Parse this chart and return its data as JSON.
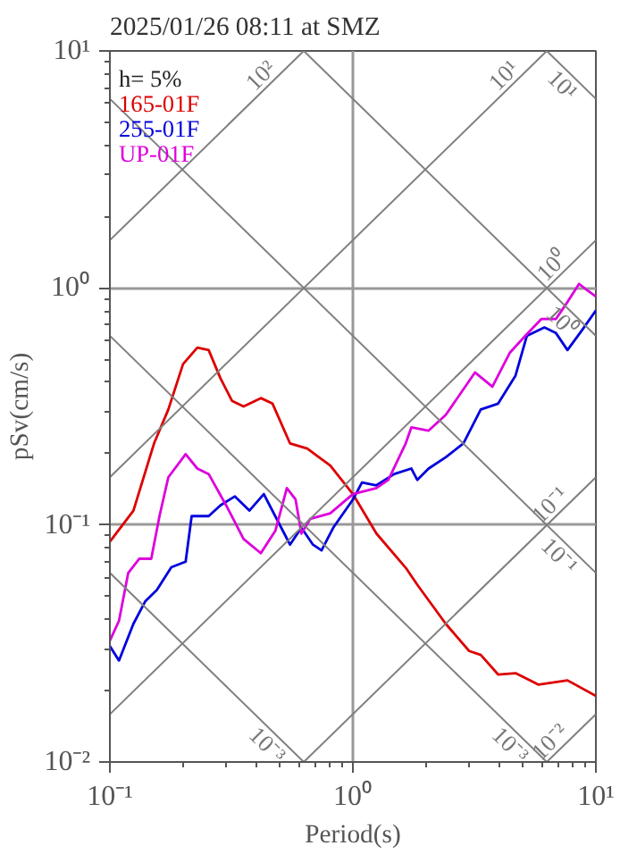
{
  "chart_data": {
    "type": "line",
    "title": "2025/01/26 08:11 at SMZ",
    "xlabel": "Period(s)",
    "ylabel": "pSv(cm/s)",
    "log": "xy",
    "grid": true,
    "legend": "top left",
    "line_style": "solid",
    "marker": "none",
    "xlim": [
      0.1,
      10
    ],
    "ylim": [
      0.01,
      10
    ],
    "xticks": [
      {
        "value": 0.1,
        "label": "10⁻¹"
      },
      {
        "value": 1,
        "label": "10⁰"
      },
      {
        "value": 10,
        "label": "10¹"
      }
    ],
    "yticks": [
      {
        "value": 0.01,
        "label": "10⁻²"
      },
      {
        "value": 0.1,
        "label": "10⁻¹"
      },
      {
        "value": 1,
        "label": "10⁰"
      },
      {
        "value": 10,
        "label": "10¹"
      }
    ],
    "annotations": [
      "h= 5%",
      {
        "text": "10²",
        "x": 0.628,
        "y": 10
      },
      {
        "text": "10¹",
        "x": 6.28,
        "y": 10
      },
      {
        "text": "10⁰",
        "x": 10,
        "y": 1.59
      },
      {
        "text": "10⁻¹",
        "x": 10,
        "y": 0.159
      },
      {
        "text": "10⁻²",
        "x": 10,
        "y": 0.0159
      },
      {
        "text": "10¹",
        "x": 10,
        "y": 6.28
      },
      {
        "text": "10⁰",
        "x": 10,
        "y": 0.628
      },
      {
        "text": "10⁻¹",
        "x": 10,
        "y": 0.0628
      },
      {
        "text": "10⁻³",
        "x": 6.28,
        "y": 0.01
      },
      {
        "text": "10⁻³",
        "x": 0.628,
        "y": 0.01
      }
    ],
    "series": [
      {
        "name": "165-01F",
        "color": "#dd0000",
        "x": [
          0.1,
          0.125,
          0.152,
          0.174,
          0.2,
          0.229,
          0.255,
          0.285,
          0.318,
          0.355,
          0.418,
          0.467,
          0.551,
          0.649,
          0.807,
          1.0,
          1.25,
          1.65,
          1.84,
          2.41,
          3.01,
          3.36,
          3.96,
          4.67,
          5.81,
          7.64,
          10
        ],
        "values": [
          0.085,
          0.115,
          0.221,
          0.307,
          0.477,
          0.56,
          0.547,
          0.416,
          0.334,
          0.316,
          0.343,
          0.325,
          0.221,
          0.21,
          0.178,
          0.135,
          0.092,
          0.066,
          0.056,
          0.0383,
          0.0294,
          0.0283,
          0.0234,
          0.0237,
          0.0212,
          0.0221,
          0.019
        ]
      },
      {
        "name": "255-01F",
        "color": "#0000dd",
        "x": [
          0.1,
          0.109,
          0.125,
          0.14,
          0.156,
          0.179,
          0.205,
          0.217,
          0.255,
          0.285,
          0.327,
          0.375,
          0.43,
          0.493,
          0.551,
          0.614,
          0.685,
          0.743,
          0.83,
          1.0,
          1.09,
          1.25,
          1.48,
          1.74,
          1.84,
          2.05,
          2.41,
          2.85,
          3.36,
          3.96,
          4.67,
          5.2,
          6.14,
          6.85,
          7.64,
          8.77,
          10
        ],
        "values": [
          0.0308,
          0.0268,
          0.0383,
          0.0477,
          0.0532,
          0.0663,
          0.07,
          0.109,
          0.109,
          0.121,
          0.132,
          0.115,
          0.135,
          0.103,
          0.0826,
          0.0973,
          0.0826,
          0.0781,
          0.0973,
          0.128,
          0.151,
          0.147,
          0.164,
          0.173,
          0.155,
          0.173,
          0.193,
          0.221,
          0.307,
          0.325,
          0.427,
          0.628,
          0.681,
          0.645,
          0.547,
          0.663,
          0.803
        ]
      },
      {
        "name": "UP-01F",
        "color": "#dd00dd",
        "x": [
          0.1,
          0.109,
          0.119,
          0.132,
          0.148,
          0.16,
          0.174,
          0.205,
          0.229,
          0.255,
          0.301,
          0.355,
          0.418,
          0.48,
          0.535,
          0.581,
          0.614,
          0.667,
          0.807,
          1.0,
          1.25,
          1.4,
          1.65,
          1.74,
          2.05,
          2.41,
          3.18,
          3.75,
          4.42,
          5.07,
          5.97,
          6.85,
          7.64,
          8.53,
          9.27,
          10
        ],
        "values": [
          0.0325,
          0.0394,
          0.0628,
          0.072,
          0.072,
          0.109,
          0.159,
          0.199,
          0.173,
          0.164,
          0.121,
          0.0873,
          0.076,
          0.0947,
          0.143,
          0.128,
          0.092,
          0.106,
          0.112,
          0.135,
          0.143,
          0.155,
          0.221,
          0.258,
          0.25,
          0.291,
          0.44,
          0.383,
          0.532,
          0.621,
          0.74,
          0.74,
          0.872,
          1.04,
          0.973,
          0.92
        ]
      },
      {
        "color": "#808080",
        "x": [
          0.1,
          0.628
        ],
        "values": [
          1.59,
          10
        ]
      },
      {
        "color": "#808080",
        "x": [
          0.1,
          6.28
        ],
        "values": [
          0.159,
          10
        ]
      },
      {
        "color": "#808080",
        "x": [
          0.1,
          10
        ],
        "values": [
          0.0159,
          1.59
        ]
      },
      {
        "color": "#808080",
        "x": [
          0.628,
          10
        ],
        "values": [
          0.01,
          0.159
        ]
      },
      {
        "color": "#808080",
        "x": [
          6.28,
          10
        ],
        "values": [
          0.01,
          0.0159
        ]
      },
      {
        "color": "#808080",
        "x": [
          6.28,
          10
        ],
        "values": [
          10,
          6.28
        ]
      },
      {
        "color": "#808080",
        "x": [
          0.628,
          10
        ],
        "values": [
          10,
          0.628
        ]
      },
      {
        "color": "#808080",
        "x": [
          0.1,
          10
        ],
        "values": [
          6.28,
          0.0628
        ]
      },
      {
        "color": "#808080",
        "x": [
          0.1,
          6.28
        ],
        "values": [
          0.628,
          0.01
        ]
      },
      {
        "color": "#808080",
        "x": [
          0.1,
          0.628
        ],
        "values": [
          0.0628,
          0.01
        ]
      }
    ]
  }
}
